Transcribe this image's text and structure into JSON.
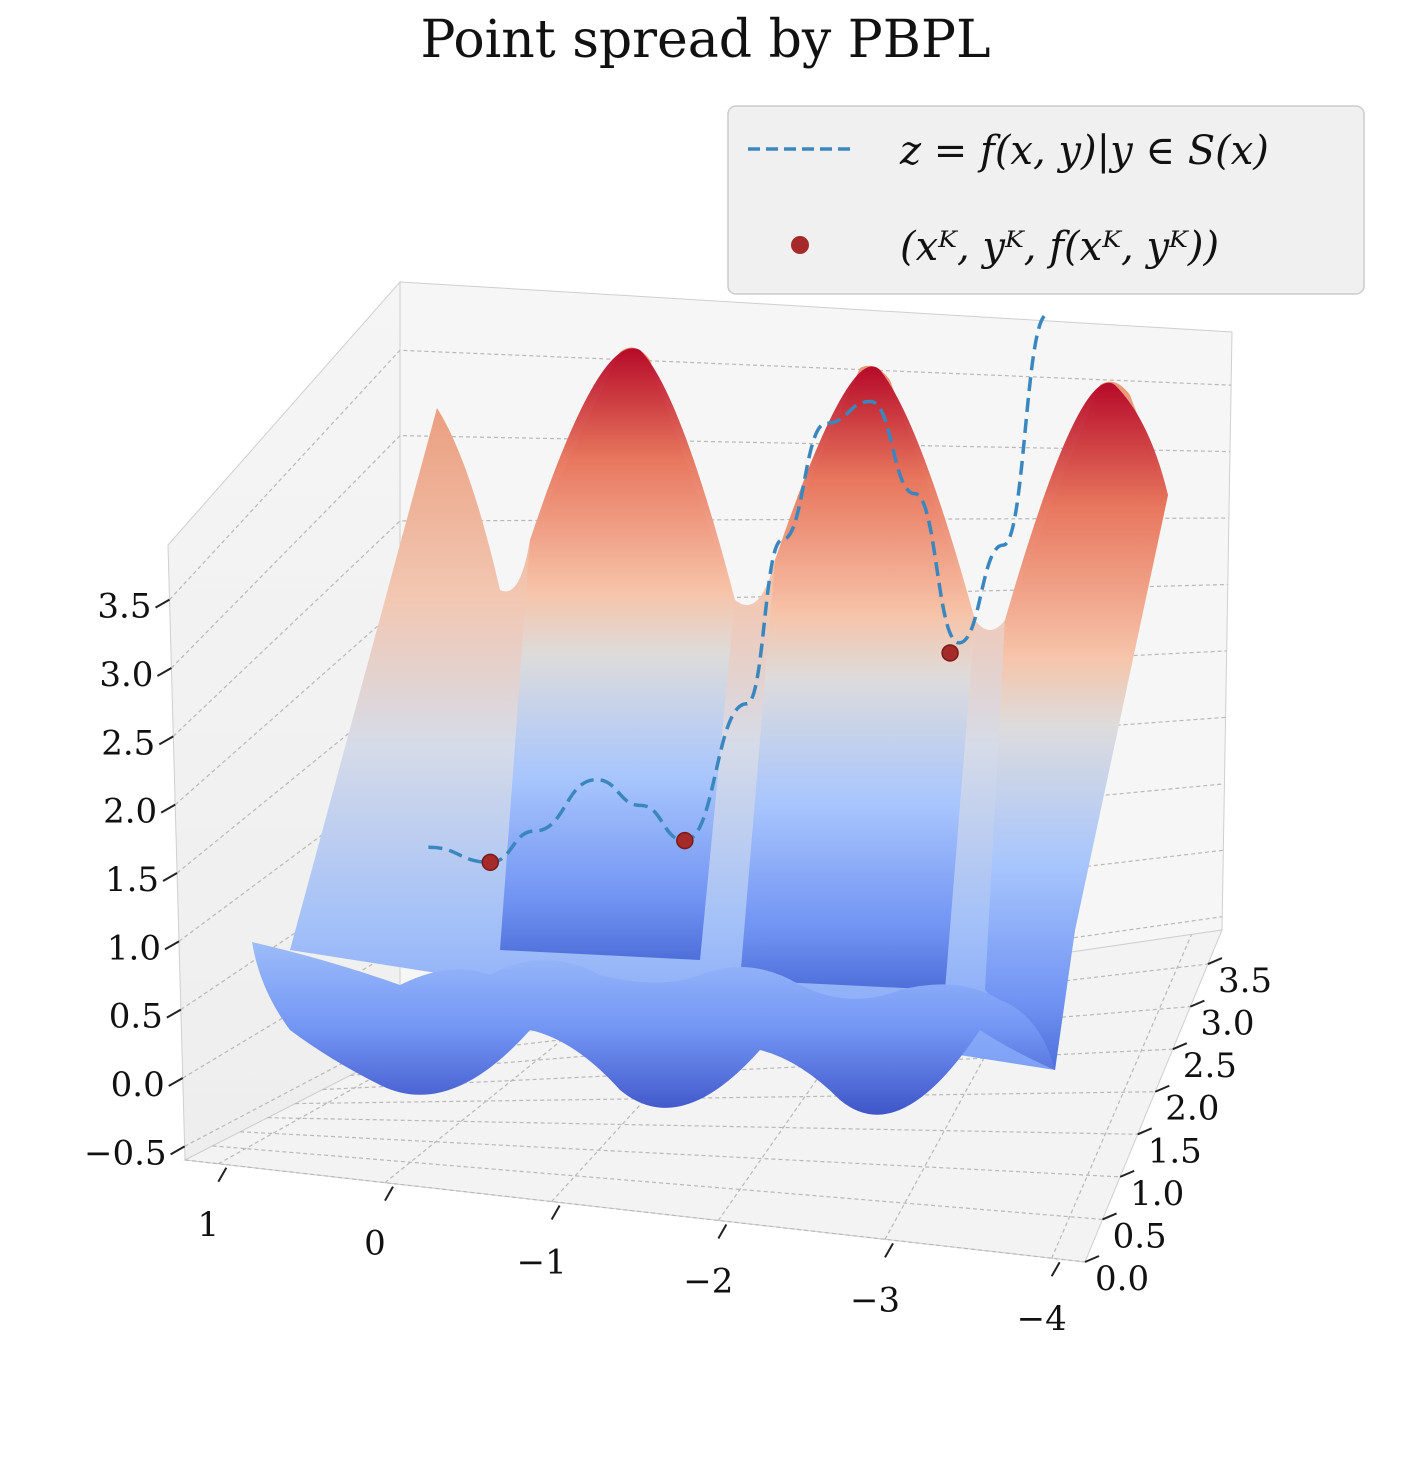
{
  "chart_data": {
    "type": "surface",
    "title": "Point spread by PBPL",
    "xlabel": "",
    "ylabel": "",
    "zlabel": "",
    "x_ticks": [
      "1",
      "0",
      "−1",
      "−2",
      "−3",
      "−4"
    ],
    "y_ticks": [
      "0.0",
      "0.5",
      "1.0",
      "1.5",
      "2.0",
      "2.5",
      "3.0",
      "3.5"
    ],
    "z_ticks": [
      "−0.5",
      "0.0",
      "0.5",
      "1.0",
      "1.5",
      "2.0",
      "2.5",
      "3.0",
      "3.5"
    ],
    "xlim": [
      1.2,
      -4.2
    ],
    "ylim": [
      0,
      3.9
    ],
    "zlim": [
      -0.6,
      3.9
    ],
    "colormap": "coolwarm",
    "grid": true,
    "legend_position": "top-right",
    "series": [
      {
        "name": "z = f(x, y)|y ∈ S(x)",
        "kind": "dashed-line",
        "color": "#3a87c0",
        "x": [
          0.05,
          -0.3,
          -0.55,
          -0.9,
          -1.15,
          -1.4,
          -1.75,
          -1.95,
          -2.2,
          -2.45,
          -2.7,
          -2.95,
          -3.2,
          -3.45
        ],
        "z": [
          0.9,
          0.8,
          0.95,
          1.2,
          1.05,
          0.85,
          1.55,
          2.4,
          3.0,
          3.1,
          2.6,
          1.8,
          2.3,
          3.5
        ]
      },
      {
        "name": "(xᴷ, yᴷ, f(xᴷ, yᴷ))",
        "kind": "points",
        "color": "#a52a2a",
        "x": [
          -0.3,
          -1.4,
          -2.9
        ],
        "z": [
          0.8,
          0.85,
          1.75
        ]
      }
    ]
  }
}
